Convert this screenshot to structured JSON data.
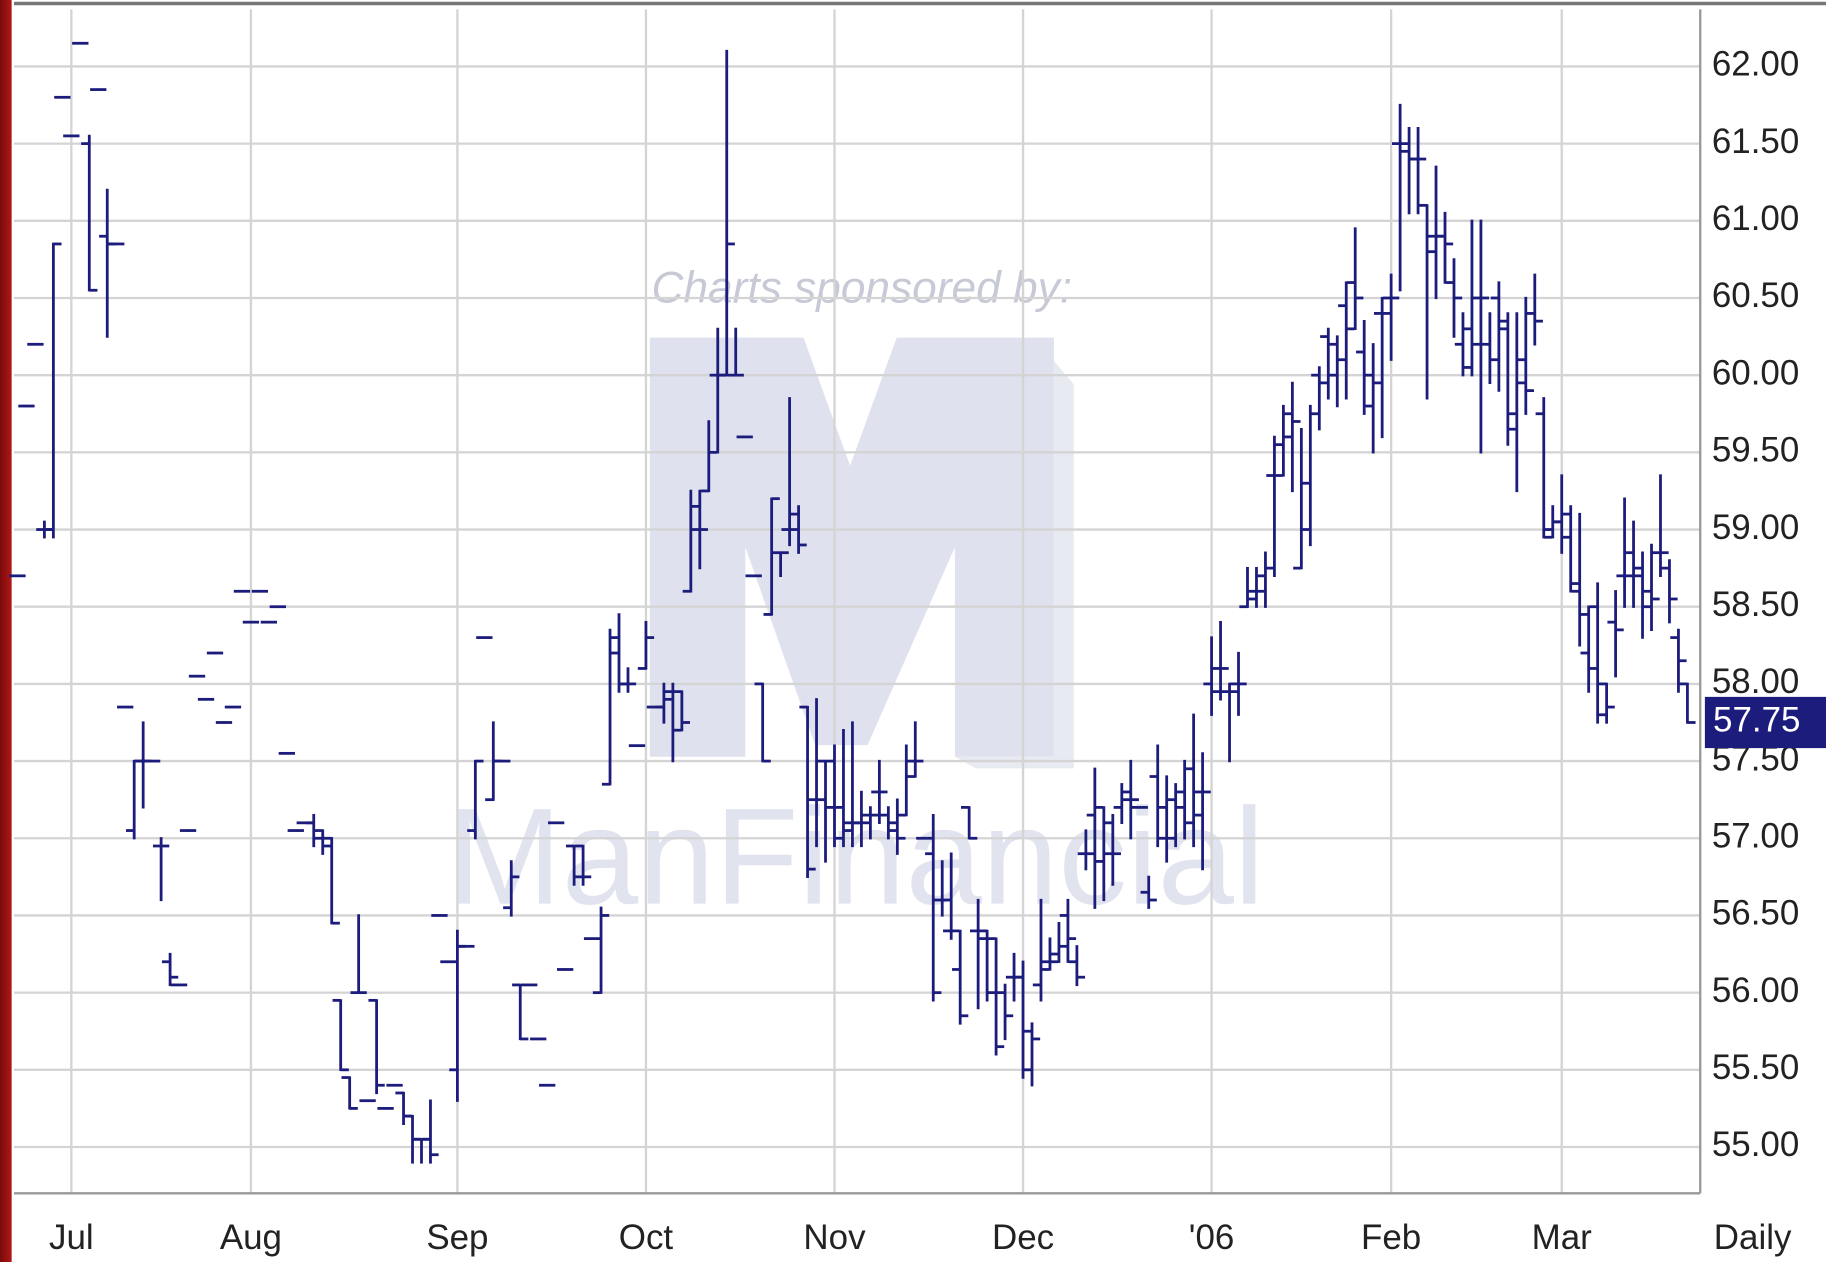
{
  "chart_data": {
    "type": "ohlc",
    "frequency": "Daily",
    "watermark": {
      "sponsor_text": "Charts sponsored by:",
      "brand": "ManFinancial"
    },
    "color": "#1c1c7c",
    "grid": true,
    "ylim": [
      54.7,
      62.37
    ],
    "yticks": [
      {
        "value": 55,
        "label": "55.00"
      },
      {
        "value": 55.5,
        "label": "55.50"
      },
      {
        "value": 56,
        "label": "56.00"
      },
      {
        "value": 56.5,
        "label": "56.50"
      },
      {
        "value": 57,
        "label": "57.00"
      },
      {
        "value": 57.5,
        "label": "57.50"
      },
      {
        "value": 58,
        "label": "58.00"
      },
      {
        "value": 58.5,
        "label": "58.50"
      },
      {
        "value": 59,
        "label": "59.00"
      },
      {
        "value": 59.5,
        "label": "59.50"
      },
      {
        "value": 60,
        "label": "60.00"
      },
      {
        "value": 60.5,
        "label": "60.50"
      },
      {
        "value": 61,
        "label": "61.00"
      },
      {
        "value": 61.5,
        "label": "61.50"
      },
      {
        "value": 62,
        "label": "62.00"
      }
    ],
    "categories": [
      null,
      null,
      null,
      null,
      null,
      null,
      "Jul",
      null,
      null,
      null,
      null,
      null,
      null,
      null,
      null,
      null,
      null,
      null,
      null,
      null,
      null,
      null,
      null,
      null,
      null,
      null,
      "Aug",
      null,
      null,
      null,
      null,
      null,
      null,
      null,
      null,
      null,
      null,
      null,
      null,
      null,
      null,
      null,
      null,
      null,
      null,
      null,
      null,
      null,
      null,
      "Sep",
      null,
      null,
      null,
      null,
      null,
      null,
      null,
      null,
      null,
      null,
      null,
      null,
      null,
      null,
      null,
      null,
      null,
      null,
      null,
      null,
      "Oct",
      null,
      null,
      null,
      null,
      null,
      null,
      null,
      null,
      null,
      null,
      null,
      null,
      null,
      null,
      null,
      null,
      null,
      null,
      null,
      null,
      "Nov",
      null,
      null,
      null,
      null,
      null,
      null,
      null,
      null,
      null,
      null,
      null,
      null,
      null,
      null,
      null,
      null,
      null,
      null,
      null,
      null,
      "Dec",
      null,
      null,
      null,
      null,
      null,
      null,
      null,
      null,
      null,
      null,
      null,
      null,
      null,
      null,
      null,
      null,
      null,
      null,
      null,
      null,
      "'06",
      null,
      null,
      null,
      null,
      null,
      null,
      null,
      null,
      null,
      null,
      null,
      null,
      null,
      null,
      null,
      null,
      null,
      null,
      null,
      "Feb",
      null,
      null,
      null,
      null,
      null,
      null,
      null,
      null,
      null,
      null,
      null,
      null,
      null,
      null,
      null,
      null,
      null,
      null,
      "Mar",
      null,
      null,
      null,
      null,
      null,
      null,
      null,
      null,
      null,
      null,
      null,
      null,
      null,
      null
    ],
    "ohlc": [
      [
        58.7,
        58.7,
        58.7,
        58.7
      ],
      [
        59.8,
        59.8,
        59.8,
        59.8
      ],
      [
        60.2,
        60.2,
        60.2,
        60.2
      ],
      [
        59.0,
        59.05,
        58.95,
        59.0
      ],
      [
        59.0,
        60.85,
        58.95,
        60.85
      ],
      [
        61.8,
        61.8,
        61.8,
        61.8
      ],
      [
        61.55,
        61.55,
        61.55,
        61.55
      ],
      [
        62.15,
        62.15,
        62.15,
        62.15
      ],
      [
        61.5,
        61.55,
        60.55,
        60.55
      ],
      [
        61.85,
        61.85,
        61.85,
        61.85
      ],
      [
        60.9,
        61.2,
        60.25,
        60.85
      ],
      [
        60.85,
        60.85,
        60.85,
        60.85
      ],
      [
        57.85,
        57.85,
        57.85,
        57.85
      ],
      [
        57.05,
        57.5,
        57.0,
        57.5
      ],
      [
        57.5,
        57.75,
        57.2,
        57.5
      ],
      [
        57.5,
        57.5,
        57.5,
        57.5
      ],
      [
        56.95,
        57.0,
        56.6,
        56.95
      ],
      [
        56.2,
        56.25,
        56.05,
        56.1
      ],
      [
        56.05,
        56.05,
        56.05,
        56.05
      ],
      [
        57.05,
        57.05,
        57.05,
        57.05
      ],
      [
        58.05,
        58.05,
        58.05,
        58.05
      ],
      [
        57.9,
        57.9,
        57.9,
        57.9
      ],
      [
        58.2,
        58.2,
        58.2,
        58.2
      ],
      [
        57.75,
        57.75,
        57.75,
        57.75
      ],
      [
        57.85,
        57.85,
        57.85,
        57.85
      ],
      [
        58.6,
        58.6,
        58.6,
        58.6
      ],
      [
        58.4,
        58.4,
        58.4,
        58.4
      ],
      [
        58.6,
        58.6,
        58.6,
        58.6
      ],
      [
        58.4,
        58.4,
        58.4,
        58.4
      ],
      [
        58.5,
        58.5,
        58.5,
        58.5
      ],
      [
        57.55,
        57.55,
        57.55,
        57.55
      ],
      [
        57.05,
        57.05,
        57.05,
        57.05
      ],
      [
        57.1,
        57.1,
        57.1,
        57.1
      ],
      [
        57.1,
        57.15,
        56.95,
        57.0
      ],
      [
        57.05,
        57.05,
        56.9,
        56.95
      ],
      [
        57.0,
        57.0,
        56.45,
        56.45
      ],
      [
        55.95,
        55.95,
        55.5,
        55.5
      ],
      [
        55.45,
        55.45,
        55.25,
        55.25
      ],
      [
        56.0,
        56.5,
        56.0,
        56.0
      ],
      [
        55.3,
        55.3,
        55.3,
        55.3
      ],
      [
        55.95,
        55.95,
        55.35,
        55.4
      ],
      [
        55.25,
        55.25,
        55.25,
        55.25
      ],
      [
        55.4,
        55.4,
        55.4,
        55.4
      ],
      [
        55.35,
        55.35,
        55.15,
        55.2
      ],
      [
        55.2,
        55.2,
        54.9,
        55.05
      ],
      [
        55.05,
        55.05,
        54.9,
        55.05
      ],
      [
        55.05,
        55.3,
        54.9,
        54.95
      ],
      [
        56.5,
        56.5,
        56.5,
        56.5
      ],
      [
        56.2,
        56.2,
        56.2,
        56.2
      ],
      [
        55.5,
        56.4,
        55.3,
        56.3
      ],
      [
        56.3,
        56.3,
        56.3,
        56.3
      ],
      [
        57.05,
        57.5,
        57.0,
        57.5
      ],
      [
        58.3,
        58.3,
        58.3,
        58.3
      ],
      [
        57.25,
        57.75,
        57.25,
        57.5
      ],
      [
        57.5,
        57.5,
        57.5,
        57.5
      ],
      [
        56.55,
        56.85,
        56.5,
        56.75
      ],
      [
        56.05,
        56.05,
        55.7,
        55.7
      ],
      [
        56.05,
        56.05,
        56.05,
        56.05
      ],
      [
        55.7,
        55.7,
        55.7,
        55.7
      ],
      [
        55.4,
        55.4,
        55.4,
        55.4
      ],
      [
        57.1,
        57.1,
        57.1,
        57.1
      ],
      [
        56.15,
        56.15,
        56.15,
        56.15
      ],
      [
        56.95,
        56.95,
        56.7,
        56.75
      ],
      [
        56.95,
        56.95,
        56.7,
        56.75
      ],
      [
        56.35,
        56.35,
        56.35,
        56.35
      ],
      [
        56.0,
        56.55,
        56.0,
        56.5
      ],
      [
        57.35,
        58.35,
        57.35,
        58.3
      ],
      [
        58.2,
        58.45,
        57.95,
        58.0
      ],
      [
        58.0,
        58.1,
        57.95,
        58.0
      ],
      [
        57.6,
        57.6,
        57.6,
        57.6
      ],
      [
        58.1,
        58.4,
        58.1,
        58.3
      ],
      [
        57.85,
        57.85,
        57.85,
        57.85
      ],
      [
        57.85,
        58.0,
        57.75,
        57.95
      ],
      [
        57.9,
        58.0,
        57.5,
        57.7
      ],
      [
        57.95,
        57.95,
        57.7,
        57.75
      ],
      [
        58.6,
        59.25,
        58.6,
        59.15
      ],
      [
        59.0,
        59.25,
        58.75,
        59.0
      ],
      [
        59.25,
        59.7,
        59.25,
        59.5
      ],
      [
        60.0,
        60.3,
        59.5,
        60.0
      ],
      [
        60.0,
        62.1,
        60.0,
        60.85
      ],
      [
        60.0,
        60.3,
        60.0,
        60.0
      ],
      [
        59.6,
        59.6,
        59.6,
        59.6
      ],
      [
        58.7,
        58.7,
        58.7,
        58.7
      ],
      [
        58.0,
        58.0,
        57.5,
        57.5
      ],
      [
        58.45,
        59.2,
        58.45,
        59.2
      ],
      [
        58.85,
        58.85,
        58.7,
        58.85
      ],
      [
        59.0,
        59.85,
        58.9,
        59.0
      ],
      [
        59.1,
        59.15,
        58.85,
        58.9
      ],
      [
        57.85,
        57.85,
        56.75,
        56.8
      ],
      [
        57.25,
        57.9,
        56.95,
        57.25
      ],
      [
        57.5,
        57.5,
        56.85,
        57.2
      ],
      [
        57.5,
        57.6,
        56.95,
        57.0
      ],
      [
        57.2,
        57.7,
        56.95,
        57.05
      ],
      [
        57.1,
        57.75,
        56.95,
        57.1
      ],
      [
        57.1,
        57.3,
        56.95,
        57.1
      ],
      [
        57.15,
        57.2,
        57.0,
        57.15
      ],
      [
        57.3,
        57.5,
        57.1,
        57.3
      ],
      [
        57.15,
        57.2,
        57.0,
        57.1
      ],
      [
        57.05,
        57.25,
        56.9,
        57.0
      ],
      [
        57.15,
        57.6,
        57.15,
        57.5
      ],
      [
        57.4,
        57.75,
        57.4,
        57.5
      ],
      [
        57.0,
        57.0,
        57.0,
        57.0
      ],
      [
        56.9,
        57.15,
        55.95,
        56.0
      ],
      [
        56.6,
        56.85,
        56.5,
        56.6
      ],
      [
        56.4,
        56.9,
        56.35,
        56.4
      ],
      [
        56.15,
        56.4,
        55.8,
        55.85
      ],
      [
        57.2,
        57.2,
        57.0,
        57.0
      ],
      [
        56.4,
        56.6,
        55.9,
        56.35
      ],
      [
        56.4,
        56.4,
        55.95,
        56.0
      ],
      [
        56.35,
        56.35,
        55.6,
        55.65
      ],
      [
        56.0,
        56.05,
        55.7,
        55.85
      ],
      [
        56.1,
        56.25,
        55.95,
        56.1
      ],
      [
        56.1,
        56.2,
        55.45,
        55.5
      ],
      [
        55.75,
        55.8,
        55.4,
        55.7
      ],
      [
        56.05,
        56.6,
        55.95,
        56.15
      ],
      [
        56.2,
        56.35,
        56.15,
        56.2
      ],
      [
        56.25,
        56.45,
        56.2,
        56.3
      ],
      [
        56.5,
        56.6,
        56.2,
        56.35
      ],
      [
        56.2,
        56.3,
        56.05,
        56.1
      ],
      [
        56.9,
        57.05,
        56.8,
        56.9
      ],
      [
        57.15,
        57.45,
        56.55,
        57.2
      ],
      [
        56.85,
        57.2,
        56.6,
        57.1
      ],
      [
        56.9,
        57.15,
        56.7,
        56.9
      ],
      [
        57.2,
        57.35,
        57.1,
        57.25
      ],
      [
        57.3,
        57.5,
        57.0,
        57.25
      ],
      [
        57.2,
        57.2,
        57.2,
        57.2
      ],
      [
        56.65,
        56.75,
        56.55,
        56.6
      ],
      [
        57.4,
        57.6,
        56.95,
        57.0
      ],
      [
        57.2,
        57.4,
        56.85,
        57.0
      ],
      [
        57.25,
        57.35,
        56.95,
        57.2
      ],
      [
        57.3,
        57.5,
        57.0,
        57.45
      ],
      [
        57.1,
        57.8,
        56.95,
        57.3
      ],
      [
        57.15,
        57.55,
        56.8,
        57.3
      ],
      [
        58.0,
        58.3,
        57.8,
        58.1
      ],
      [
        57.95,
        58.4,
        57.9,
        58.1
      ],
      [
        57.95,
        58.0,
        57.5,
        58.0
      ],
      [
        57.95,
        58.2,
        57.8,
        58.0
      ],
      [
        58.5,
        58.75,
        58.5,
        58.55
      ],
      [
        58.6,
        58.75,
        58.5,
        58.6
      ],
      [
        58.7,
        58.85,
        58.5,
        58.75
      ],
      [
        59.35,
        59.6,
        58.7,
        59.35
      ],
      [
        59.55,
        59.8,
        59.35,
        59.6
      ],
      [
        59.75,
        59.95,
        59.25,
        59.7
      ],
      [
        58.75,
        59.65,
        58.75,
        59.3
      ],
      [
        59.0,
        59.8,
        58.9,
        59.75
      ],
      [
        60.0,
        60.05,
        59.65,
        59.95
      ],
      [
        60.25,
        60.3,
        59.85,
        60.0
      ],
      [
        60.2,
        60.25,
        59.8,
        60.1
      ],
      [
        60.45,
        60.6,
        59.85,
        60.3
      ],
      [
        60.6,
        60.95,
        60.3,
        60.5
      ],
      [
        60.15,
        60.35,
        59.75,
        59.8
      ],
      [
        60.0,
        60.2,
        59.5,
        59.95
      ],
      [
        60.4,
        60.5,
        59.6,
        60.4
      ],
      [
        60.5,
        60.65,
        60.1,
        60.5
      ],
      [
        61.5,
        61.75,
        60.55,
        61.5
      ],
      [
        61.45,
        61.6,
        61.05,
        61.4
      ],
      [
        61.4,
        61.6,
        61.05,
        61.4
      ],
      [
        61.1,
        61.1,
        59.85,
        60.8
      ],
      [
        60.9,
        61.35,
        60.5,
        60.9
      ],
      [
        60.9,
        61.05,
        60.6,
        60.85
      ],
      [
        60.6,
        60.75,
        60.25,
        60.5
      ],
      [
        60.2,
        60.4,
        60.0,
        60.05
      ],
      [
        60.3,
        61.0,
        60.0,
        60.2
      ],
      [
        60.5,
        61.0,
        59.5,
        60.5
      ],
      [
        60.2,
        60.4,
        59.95,
        60.1
      ],
      [
        60.5,
        60.6,
        59.9,
        60.3
      ],
      [
        60.35,
        60.4,
        59.55,
        59.75
      ],
      [
        59.65,
        60.4,
        59.25,
        59.95
      ],
      [
        60.1,
        60.5,
        59.75,
        59.9
      ],
      [
        60.4,
        60.65,
        60.2,
        60.35
      ],
      [
        59.75,
        59.85,
        58.95,
        58.95
      ],
      [
        59.0,
        59.15,
        58.95,
        59.05
      ],
      [
        59.05,
        59.35,
        58.85,
        59.1
      ],
      [
        58.95,
        59.15,
        58.6,
        58.65
      ],
      [
        58.6,
        59.1,
        58.25,
        58.45
      ],
      [
        58.2,
        58.5,
        57.95,
        58.1
      ],
      [
        58.5,
        58.65,
        57.75,
        57.8
      ],
      [
        58.0,
        58.0,
        57.75,
        57.85
      ],
      [
        58.4,
        58.6,
        58.05,
        58.35
      ],
      [
        58.7,
        59.2,
        58.5,
        58.7
      ],
      [
        58.85,
        59.05,
        58.5,
        58.7
      ],
      [
        58.75,
        58.85,
        58.3,
        58.6
      ],
      [
        58.5,
        58.9,
        58.35,
        58.55
      ],
      [
        58.85,
        59.35,
        58.7,
        58.85
      ],
      [
        58.75,
        58.8,
        58.4,
        58.55
      ],
      [
        58.3,
        58.35,
        57.95,
        58.15
      ],
      [
        58.0,
        58.0,
        57.75,
        57.75
      ]
    ]
  }
}
